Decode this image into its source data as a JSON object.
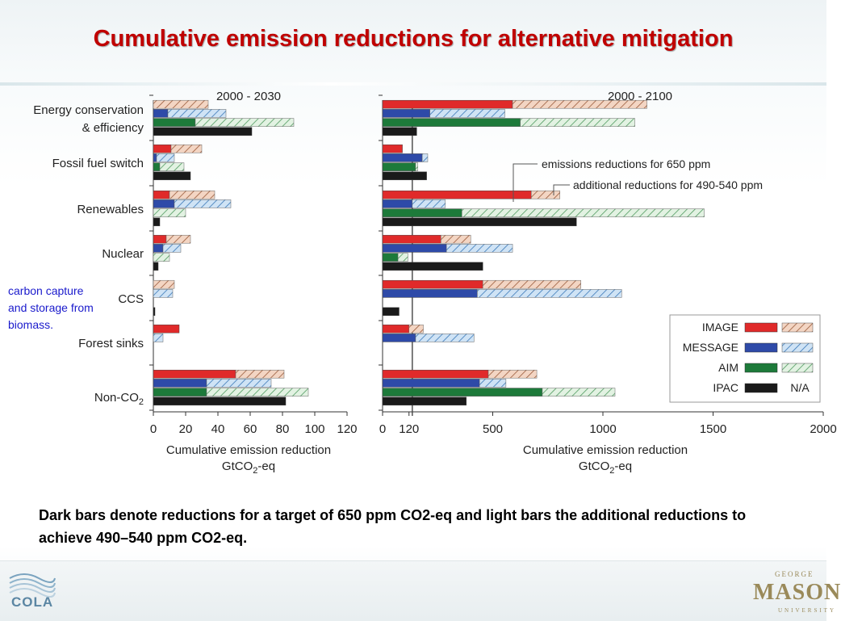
{
  "slide": {
    "title": "Cumulative emission reductions for alternative mitigation",
    "caption": "Dark bars denote reductions for a target of 650 ppm CO2-eq and light bars the additional reductions to achieve 490–540 ppm CO2-eq.",
    "side_note": "carbon capture and storage from biomass.",
    "logo_left": "COLA",
    "logo_right": "MASON",
    "logo_right_top": "GEORGE",
    "logo_right_bottom": "UNIVERSITY"
  },
  "colors": {
    "IMAGE": "#e02a2a",
    "MESSAGE": "#2e4aa8",
    "AIM": "#1d7a3a",
    "IPAC": "#1a1a1a",
    "IMAGE_light": "#e6b9a0",
    "MESSAGE_light": "#9cc4e6",
    "AIM_light": "#bfe0bf",
    "title": "#c00000"
  },
  "chart_data": [
    {
      "type": "bar",
      "orientation": "horizontal",
      "stacked_light_on_dark": true,
      "title": "2000 - 2030",
      "xlabel": "Cumulative emission reduction",
      "xunit": "GtCO2-eq",
      "xlim": [
        0,
        120
      ],
      "xticks": [
        0,
        20,
        40,
        60,
        80,
        100,
        120
      ],
      "categories": [
        "Energy conservation & efficiency",
        "Fossil fuel switch",
        "Renewables",
        "Nuclear",
        "CCS",
        "Forest sinks",
        "Non-CO2"
      ],
      "series": [
        {
          "name": "IMAGE",
          "dark": [
            0,
            11,
            10,
            8,
            0,
            16,
            51
          ],
          "light": [
            34,
            19,
            28,
            15,
            13,
            0,
            30
          ]
        },
        {
          "name": "MESSAGE",
          "dark": [
            9,
            2,
            13,
            6,
            0,
            0,
            33
          ],
          "light": [
            36,
            11,
            35,
            11,
            12,
            6,
            40
          ]
        },
        {
          "name": "AIM",
          "dark": [
            26,
            4,
            0,
            0,
            0,
            0,
            33
          ],
          "light": [
            61,
            15,
            20,
            10,
            0,
            0,
            63
          ]
        },
        {
          "name": "IPAC",
          "dark": [
            61,
            23,
            4,
            3,
            1,
            0,
            82
          ],
          "light": [
            0,
            0,
            0,
            0,
            0,
            0,
            0
          ]
        }
      ]
    },
    {
      "type": "bar",
      "orientation": "horizontal",
      "stacked_light_on_dark": true,
      "title": "2000 - 2100",
      "xlabel": "Cumulative emission reduction",
      "xunit": "GtCO2-eq",
      "xlim": [
        0,
        2000
      ],
      "xticks": [
        0,
        120,
        500,
        1000,
        1500,
        2000
      ],
      "reference_line": 135,
      "categories": [
        "Energy conservation & efficiency",
        "Fossil fuel switch",
        "Renewables",
        "Nuclear",
        "CCS",
        "Forest sinks",
        "Non-CO2"
      ],
      "series": [
        {
          "name": "IMAGE",
          "dark": [
            590,
            90,
            675,
            265,
            455,
            120,
            480
          ],
          "light": [
            610,
            0,
            130,
            135,
            445,
            65,
            220
          ]
        },
        {
          "name": "MESSAGE",
          "dark": [
            215,
            180,
            135,
            290,
            430,
            150,
            440
          ],
          "light": [
            340,
            25,
            150,
            300,
            655,
            265,
            120
          ]
        },
        {
          "name": "AIM",
          "dark": [
            625,
            150,
            360,
            70,
            0,
            0,
            725
          ],
          "light": [
            520,
            10,
            1100,
            45,
            0,
            0,
            330
          ]
        },
        {
          "name": "IPAC",
          "dark": [
            155,
            200,
            880,
            455,
            75,
            0,
            380
          ],
          "light": [
            0,
            0,
            0,
            0,
            0,
            0,
            0
          ]
        }
      ],
      "annotations": [
        "emissions reductions for 650 ppm",
        "additional reductions for 490-540 ppm"
      ],
      "legend": {
        "placement": "bottom-right",
        "entries": [
          "IMAGE",
          "MESSAGE",
          "AIM",
          "IPAC"
        ],
        "ipac_light_label": "N/A"
      }
    }
  ]
}
